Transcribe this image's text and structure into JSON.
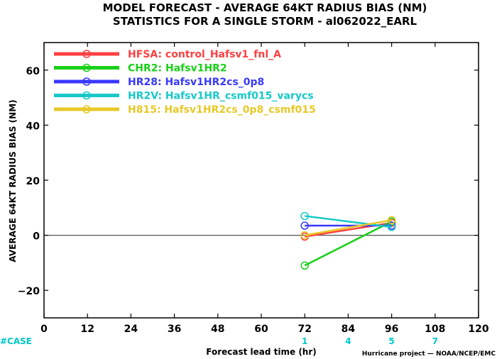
{
  "chart_data": {
    "type": "line",
    "title": "MODEL FORECAST - AVERAGE 64KT RADIUS BIAS (NM)",
    "subtitle": "STATISTICS FOR A SINGLE STORM - al062022_EARL",
    "xlabel": "Forecast lead time (hr)",
    "ylabel": "AVERAGE 64KT RADIUS BIAS (NM)",
    "xlim": [
      0,
      120
    ],
    "ylim": [
      -30,
      70
    ],
    "xticks": [
      0,
      12,
      24,
      36,
      48,
      60,
      72,
      84,
      96,
      108,
      120
    ],
    "yticks": [
      -20,
      0,
      20,
      40,
      60
    ],
    "ytick_labels": [
      "−20",
      "0",
      "20",
      "40",
      "60"
    ],
    "zero_line": true,
    "grid": false,
    "legend_position": "top-left",
    "series": [
      {
        "name": "HFSA",
        "label": "HFSA: control_Hafsv1_fnl_A",
        "color": "#ff4040",
        "x": [
          72,
          96
        ],
        "y": [
          -0.5,
          4.5
        ]
      },
      {
        "name": "CHR2",
        "label": "CHR2: Hafsv1HR2",
        "color": "#18d018",
        "x": [
          72,
          96
        ],
        "y": [
          -11,
          5
        ]
      },
      {
        "name": "HR28",
        "label": "HR28: Hafsv1HR2cs_0p8",
        "color": "#3838ff",
        "x": [
          72,
          96
        ],
        "y": [
          3.5,
          3.5
        ]
      },
      {
        "name": "HR2V",
        "label": "HR2V: Hafsv1HR_csmf015_varycs",
        "color": "#18c8c8",
        "x": [
          72,
          96
        ],
        "y": [
          7,
          3
        ]
      },
      {
        "name": "H815",
        "label": "H815: Hafsv1HR2cs_0p8_csmf015",
        "color": "#e8c828",
        "x": [
          72,
          96
        ],
        "y": [
          0,
          5.5
        ]
      }
    ],
    "cases": {
      "label": "#CASE",
      "color": "#00c8c8",
      "x": [
        72,
        84,
        96,
        108
      ],
      "counts": [
        "1",
        "4",
        "5",
        "7"
      ]
    },
    "credit": "Hurricane project — NOAA/NCEP/EMC"
  }
}
